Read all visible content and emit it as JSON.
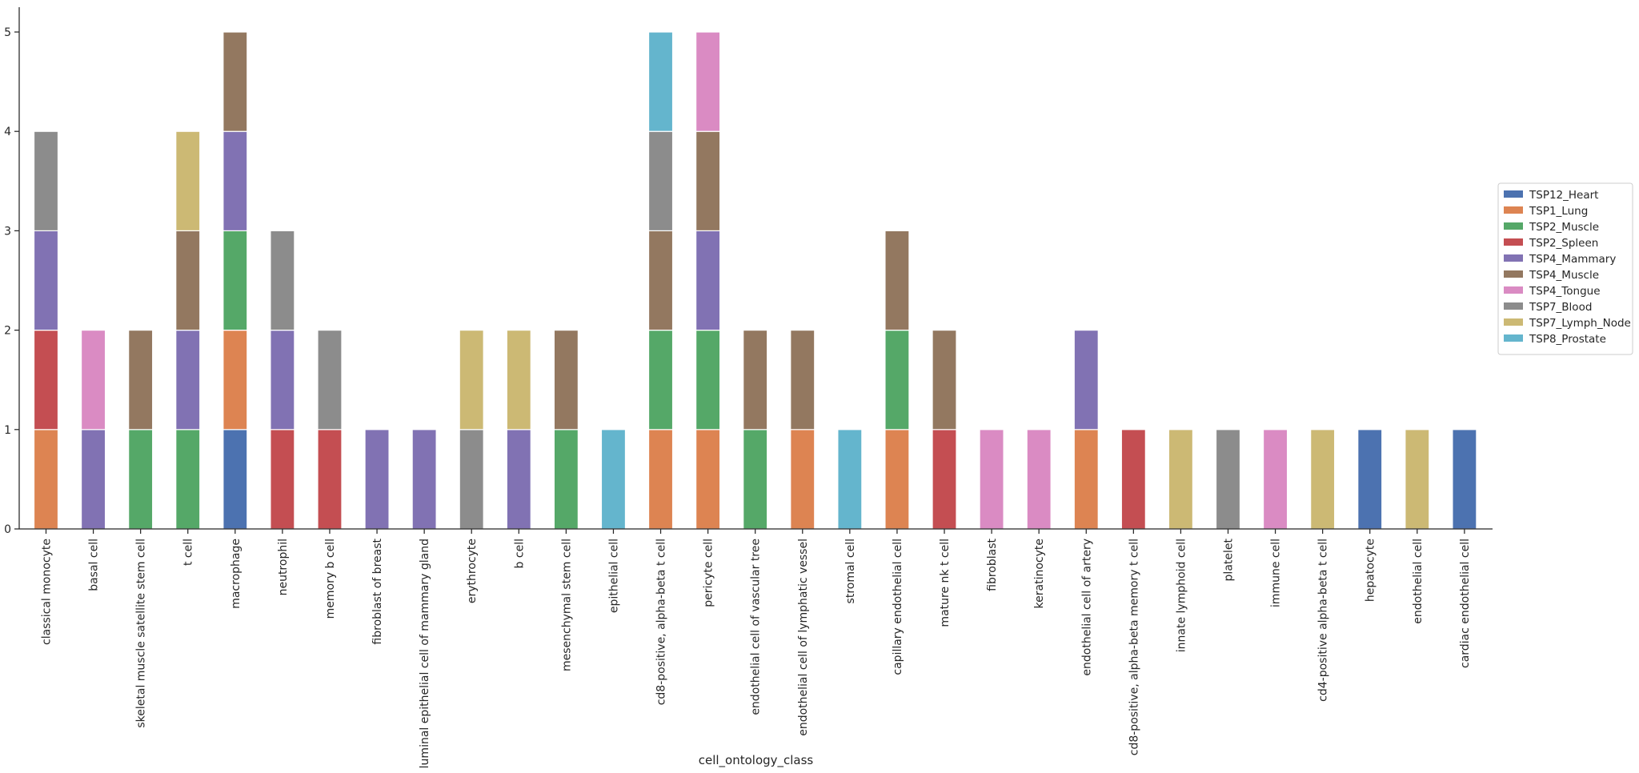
{
  "chart_data": {
    "type": "bar",
    "stacked": true,
    "xlabel": "cell_ontology_class",
    "ylabel": "",
    "ylim": [
      0,
      5.25
    ],
    "yticks": [
      0,
      1,
      2,
      3,
      4,
      5
    ],
    "grid": false,
    "legend_position": "right",
    "categories": [
      "classical monocyte",
      "basal cell",
      "skeletal muscle satellite stem cell",
      "t cell",
      "macrophage",
      "neutrophil",
      "memory b cell",
      "fibroblast of breast",
      "luminal epithelial cell of mammary gland",
      "erythrocyte",
      "b cell",
      "mesenchymal stem cell",
      "epithelial cell",
      "cd8-positive, alpha-beta t cell",
      "pericyte cell",
      "endothelial cell of vascular tree",
      "endothelial cell of lymphatic vessel",
      "stromal cell",
      "capillary endothelial cell",
      "mature nk t cell",
      "fibroblast",
      "keratinocyte",
      "endothelial cell of artery",
      "cd8-positive, alpha-beta memory t cell",
      "innate lymphoid cell",
      "platelet",
      "immune cell",
      "cd4-positive alpha-beta t cell",
      "hepatocyte",
      "endothelial cell",
      "cardiac endothelial cell"
    ],
    "series": [
      {
        "name": "TSP12_Heart",
        "color": "#4c72b0",
        "values": [
          0,
          0,
          0,
          0,
          1,
          0,
          0,
          0,
          0,
          0,
          0,
          0,
          0,
          0,
          0,
          0,
          0,
          0,
          0,
          0,
          0,
          0,
          0,
          0,
          0,
          0,
          0,
          0,
          1,
          0,
          1
        ]
      },
      {
        "name": "TSP1_Lung",
        "color": "#dd8452",
        "values": [
          1,
          0,
          0,
          0,
          1,
          0,
          0,
          0,
          0,
          0,
          0,
          0,
          0,
          1,
          1,
          0,
          1,
          0,
          1,
          0,
          0,
          0,
          1,
          0,
          0,
          0,
          0,
          0,
          0,
          0,
          0
        ]
      },
      {
        "name": "TSP2_Muscle",
        "color": "#55a868",
        "values": [
          0,
          0,
          1,
          1,
          1,
          0,
          0,
          0,
          0,
          0,
          0,
          1,
          0,
          1,
          1,
          1,
          0,
          0,
          1,
          0,
          0,
          0,
          0,
          0,
          0,
          0,
          0,
          0,
          0,
          0,
          0
        ]
      },
      {
        "name": "TSP2_Spleen",
        "color": "#c44e52",
        "values": [
          1,
          0,
          0,
          0,
          0,
          1,
          1,
          0,
          0,
          0,
          0,
          0,
          0,
          0,
          0,
          0,
          0,
          0,
          0,
          1,
          0,
          0,
          0,
          1,
          0,
          0,
          0,
          0,
          0,
          0,
          0
        ]
      },
      {
        "name": "TSP4_Mammary",
        "color": "#8172b3",
        "values": [
          1,
          1,
          0,
          1,
          1,
          1,
          0,
          1,
          1,
          0,
          1,
          0,
          0,
          0,
          1,
          0,
          0,
          0,
          0,
          0,
          0,
          0,
          1,
          0,
          0,
          0,
          0,
          0,
          0,
          0,
          0
        ]
      },
      {
        "name": "TSP4_Muscle",
        "color": "#937860",
        "values": [
          0,
          0,
          1,
          1,
          1,
          0,
          0,
          0,
          0,
          0,
          0,
          1,
          0,
          1,
          1,
          1,
          1,
          0,
          1,
          1,
          0,
          0,
          0,
          0,
          0,
          0,
          0,
          0,
          0,
          0,
          0
        ]
      },
      {
        "name": "TSP4_Tongue",
        "color": "#da8bc3",
        "values": [
          0,
          1,
          0,
          0,
          0,
          0,
          0,
          0,
          0,
          0,
          0,
          0,
          0,
          0,
          1,
          0,
          0,
          0,
          0,
          0,
          1,
          1,
          0,
          0,
          0,
          0,
          1,
          0,
          0,
          0,
          0
        ]
      },
      {
        "name": "TSP7_Blood",
        "color": "#8c8c8c",
        "values": [
          1,
          0,
          0,
          0,
          0,
          1,
          1,
          0,
          0,
          1,
          0,
          0,
          0,
          1,
          0,
          0,
          0,
          0,
          0,
          0,
          0,
          0,
          0,
          0,
          0,
          1,
          0,
          0,
          0,
          0,
          0
        ]
      },
      {
        "name": "TSP7_Lymph_Node",
        "color": "#ccb974",
        "values": [
          0,
          0,
          0,
          1,
          0,
          0,
          0,
          0,
          0,
          1,
          1,
          0,
          0,
          0,
          0,
          0,
          0,
          0,
          0,
          0,
          0,
          0,
          0,
          0,
          1,
          0,
          0,
          1,
          0,
          1,
          0
        ]
      },
      {
        "name": "TSP8_Prostate",
        "color": "#64b5cd",
        "values": [
          0,
          0,
          0,
          0,
          0,
          0,
          0,
          0,
          0,
          0,
          0,
          0,
          1,
          1,
          0,
          0,
          0,
          1,
          0,
          0,
          0,
          0,
          0,
          0,
          0,
          0,
          0,
          0,
          0,
          0,
          0
        ]
      }
    ]
  }
}
